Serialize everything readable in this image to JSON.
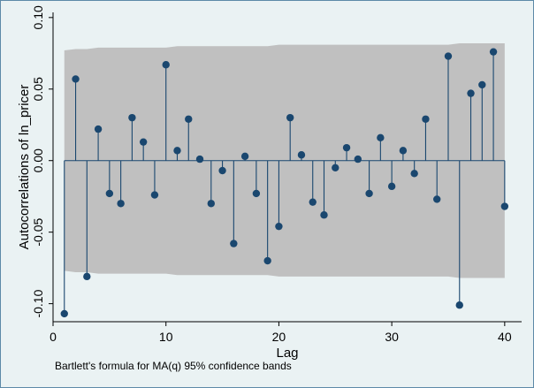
{
  "chart_data": {
    "type": "scatter",
    "subtype": "autocorrelation-stem",
    "title": "",
    "xlabel": "Lag",
    "ylabel": "Autocorrelations of ln_pricer",
    "note": "Bartlett's formula for MA(q) 95% confidence bands",
    "xlim": [
      0,
      40
    ],
    "ylim": [
      -0.1,
      0.1
    ],
    "x_ticks": [
      0,
      10,
      20,
      30,
      40
    ],
    "y_ticks": [
      -0.1,
      -0.05,
      0.0,
      0.05,
      0.1
    ],
    "y_tick_labels": [
      "-0.10",
      "-0.05",
      "0.00",
      "0.05",
      "0.10"
    ],
    "lags": [
      1,
      2,
      3,
      4,
      5,
      6,
      7,
      8,
      9,
      10,
      11,
      12,
      13,
      14,
      15,
      16,
      17,
      18,
      19,
      20,
      21,
      22,
      23,
      24,
      25,
      26,
      27,
      28,
      29,
      30,
      31,
      32,
      33,
      34,
      35,
      36,
      37,
      38,
      39,
      40
    ],
    "values": [
      -0.107,
      0.057,
      -0.081,
      0.022,
      -0.023,
      -0.03,
      0.03,
      0.013,
      -0.024,
      0.067,
      0.007,
      0.029,
      0.001,
      -0.03,
      -0.007,
      -0.058,
      0.003,
      -0.023,
      -0.07,
      -0.046,
      0.03,
      0.004,
      -0.029,
      -0.038,
      -0.005,
      0.009,
      0.001,
      -0.023,
      0.016,
      -0.018,
      0.007,
      -0.009,
      0.029,
      -0.027,
      0.073,
      -0.101,
      0.047,
      0.053,
      0.076,
      -0.032
    ],
    "confidence_band_upper": [
      0.077,
      0.078,
      0.078,
      0.079,
      0.079,
      0.079,
      0.079,
      0.079,
      0.079,
      0.079,
      0.08,
      0.08,
      0.08,
      0.08,
      0.08,
      0.08,
      0.08,
      0.08,
      0.08,
      0.081,
      0.081,
      0.081,
      0.081,
      0.081,
      0.081,
      0.081,
      0.081,
      0.081,
      0.081,
      0.081,
      0.081,
      0.081,
      0.081,
      0.081,
      0.081,
      0.082,
      0.082,
      0.082,
      0.082,
      0.082
    ],
    "colors": {
      "background": "#eaf2f3",
      "band": "#c0c0c0",
      "marker": "#1a476f",
      "stem": "#1a476f",
      "axis": "#000000"
    },
    "grid": false
  }
}
